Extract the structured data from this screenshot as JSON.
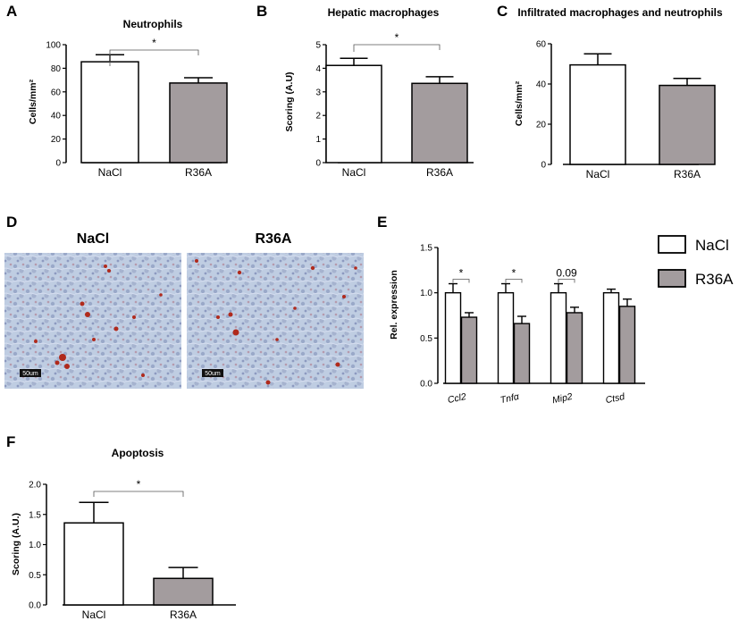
{
  "colors": {
    "nacl": "#ffffff",
    "r36a": "#a39c9e",
    "stroke": "#000000",
    "tissue_bg": "#bccbe0",
    "stain": "#b02a1c"
  },
  "chart_data": [
    {
      "panel": "A",
      "type": "bar",
      "title": "Neutrophils",
      "xlabel": "",
      "ylabel": "Cells/mm²",
      "categories": [
        "NaCl",
        "R36A"
      ],
      "values": [
        85.5,
        67.5
      ],
      "errors": [
        6.0,
        4.5
      ],
      "ylim": [
        0,
        100
      ],
      "yticks": [
        "0",
        "20",
        "40",
        "60",
        "80",
        "100"
      ],
      "significance": [
        {
          "between": [
            0,
            1
          ],
          "label": "*"
        }
      ]
    },
    {
      "panel": "B",
      "type": "bar",
      "title": "Hepatic macrophages",
      "xlabel": "",
      "ylabel": "Scoring (A.U)",
      "categories": [
        "NaCl",
        "R36A"
      ],
      "values": [
        4.12,
        3.36
      ],
      "errors": [
        0.3,
        0.28
      ],
      "ylim": [
        0,
        5
      ],
      "yticks": [
        "0",
        "1",
        "2",
        "3",
        "4",
        "5"
      ],
      "significance": [
        {
          "between": [
            0,
            1
          ],
          "label": "*"
        }
      ]
    },
    {
      "panel": "C",
      "type": "bar",
      "title": "Infiltrated macrophages and neutrophils",
      "xlabel": "",
      "ylabel": "Cells/mm²",
      "categories": [
        "NaCl",
        "R36A"
      ],
      "values": [
        49.5,
        39.3
      ],
      "errors": [
        5.5,
        3.5
      ],
      "ylim": [
        0,
        60
      ],
      "yticks": [
        "0",
        "20",
        "40",
        "60"
      ],
      "significance": []
    },
    {
      "panel": "E",
      "type": "bar",
      "title": "",
      "xlabel": "",
      "ylabel": "Rel. expression",
      "categories": [
        "Ccl2",
        "Tnfα",
        "Mip2",
        "Ctsd"
      ],
      "series": [
        {
          "name": "NaCl",
          "values": [
            1.0,
            1.0,
            1.0,
            1.0
          ],
          "errors": [
            0.1,
            0.1,
            0.1,
            0.04
          ]
        },
        {
          "name": "R36A",
          "values": [
            0.73,
            0.66,
            0.78,
            0.85
          ],
          "errors": [
            0.05,
            0.08,
            0.06,
            0.08
          ]
        }
      ],
      "ylim": [
        0,
        1.5
      ],
      "yticks": [
        "0.0",
        "0.5",
        "1.0",
        "1.5"
      ],
      "significance": [
        {
          "category": 0,
          "label": "*"
        },
        {
          "category": 1,
          "label": "*"
        },
        {
          "category": 2,
          "label": "0.09"
        }
      ],
      "legend_position": "right"
    },
    {
      "panel": "F",
      "type": "bar",
      "title": "Apoptosis",
      "xlabel": "",
      "ylabel": "Scoring (A.U.)",
      "categories": [
        "NaCl",
        "R36A"
      ],
      "values": [
        1.36,
        0.44
      ],
      "errors": [
        0.34,
        0.18
      ],
      "ylim": [
        0,
        2.0
      ],
      "yticks": [
        "0.0",
        "0.5",
        "1.0",
        "1.5",
        "2.0"
      ],
      "significance": [
        {
          "between": [
            0,
            1
          ],
          "label": "*"
        }
      ]
    }
  ],
  "micrographs": {
    "panel": "D",
    "titles": [
      "NaCl",
      "R36A"
    ],
    "scale_bar_label": "50um"
  }
}
